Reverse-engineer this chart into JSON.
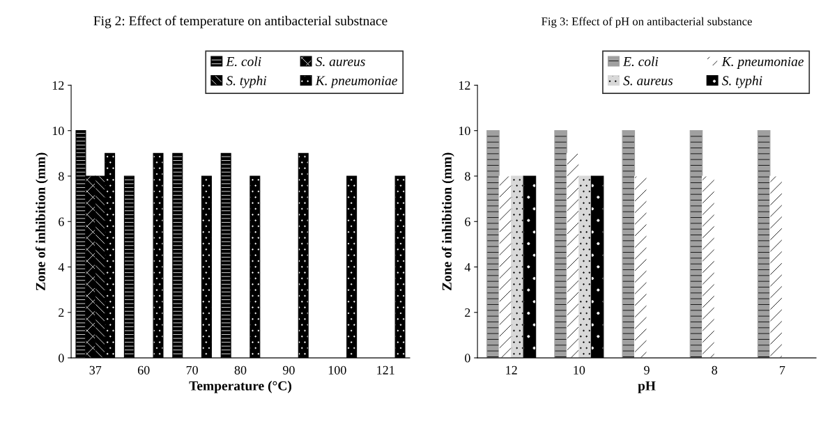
{
  "chart_data": [
    {
      "type": "bar",
      "title": "Fig 2: Effect of temperature on antibacterial substnace",
      "xlabel": "Temperature (°C)",
      "ylabel": "Zone of inhibition (mm)",
      "categories": [
        "37",
        "60",
        "70",
        "80",
        "90",
        "100",
        "121"
      ],
      "series": [
        {
          "name": "E. coli",
          "color": "#000000",
          "values": [
            10,
            8,
            9,
            9,
            null,
            null,
            null
          ]
        },
        {
          "name": "S. aureus",
          "color": "#000000",
          "values": [
            8,
            null,
            null,
            null,
            null,
            null,
            null
          ]
        },
        {
          "name": "S. typhi",
          "color": "#000000",
          "values": [
            8,
            null,
            null,
            null,
            null,
            null,
            null
          ]
        },
        {
          "name": "K. pneumoniae",
          "color": "#000000",
          "values": [
            9,
            9,
            8,
            8,
            9,
            8,
            8
          ]
        }
      ],
      "ylim": [
        0,
        12
      ],
      "yticks": [
        0,
        2,
        4,
        6,
        8,
        10,
        12
      ],
      "grid": false,
      "legend": "top right"
    },
    {
      "type": "bar",
      "title": "Fig 3: Effect of pH on antibacterial substance",
      "xlabel": "pH",
      "ylabel": "Zone of inhibition (mm)",
      "categories": [
        "12",
        "10",
        "9",
        "8",
        "7"
      ],
      "series": [
        {
          "name": "E. coli",
          "color": "#a0a0a0",
          "values": [
            10,
            10,
            10,
            10,
            10
          ]
        },
        {
          "name": "K. pneumoniae",
          "color": "#ffffff",
          "values": [
            8,
            9,
            8,
            8,
            8
          ]
        },
        {
          "name": "S. aureus",
          "color": "#d8d8d8",
          "values": [
            8,
            8,
            null,
            null,
            null
          ]
        },
        {
          "name": "S. typhi",
          "color": "#000000",
          "values": [
            8,
            8,
            null,
            null,
            null
          ]
        }
      ],
      "ylim": [
        0,
        12
      ],
      "yticks": [
        0,
        2,
        4,
        6,
        8,
        10,
        12
      ],
      "grid": false,
      "legend": "top right"
    }
  ]
}
